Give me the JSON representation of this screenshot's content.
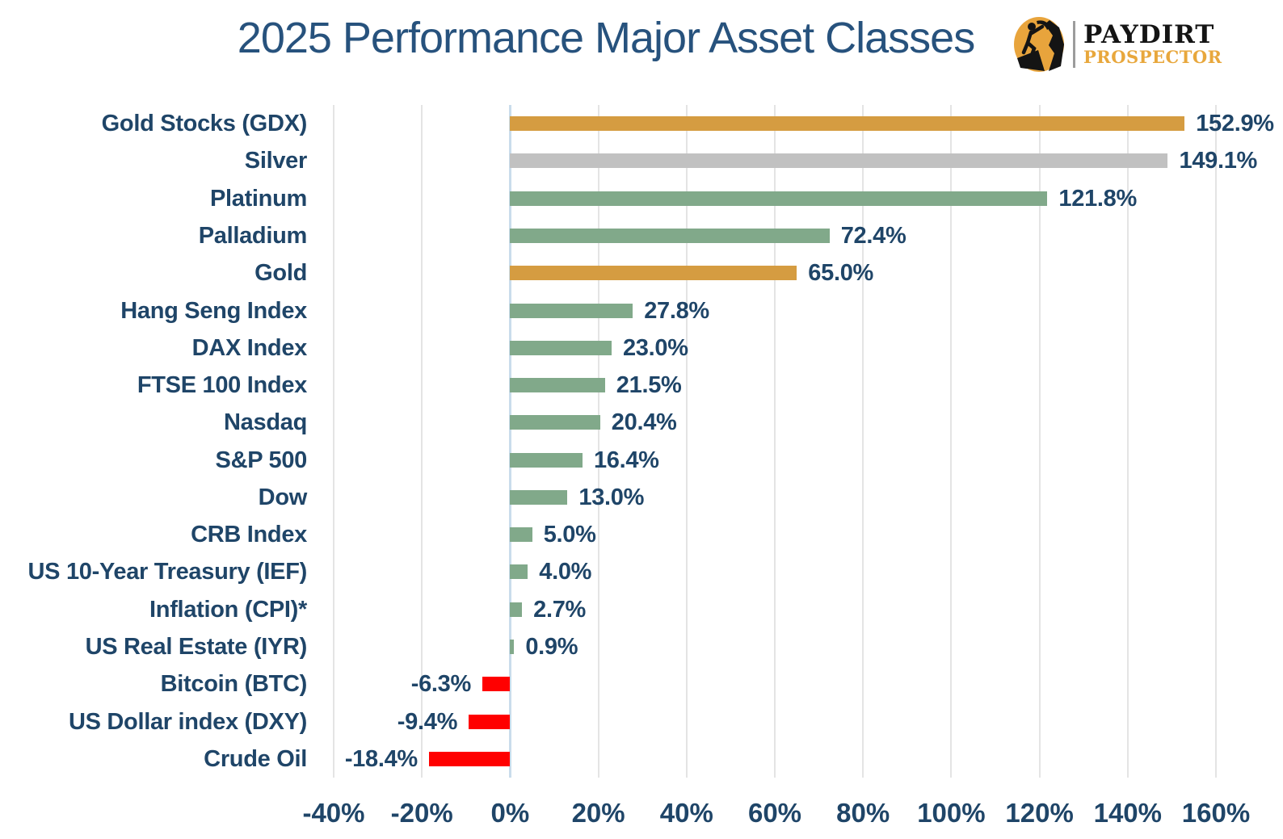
{
  "title": "2025 Performance Major Asset Classes",
  "logo": {
    "badge_icon": "prospector-pickaxe-badge",
    "name": "PAYDIRT",
    "subtitle": "PROSPECTOR",
    "badge_gold": "#E8A43C",
    "badge_black": "#141414"
  },
  "colors": {
    "gold": "#D59C41",
    "silver": "#C1C1C1",
    "green": "#81A98A",
    "red": "#FF0000",
    "navy_text": "#1F4568",
    "title_text": "#27527D",
    "gridline": "#E4E4E4",
    "zero_axis": "#C9DCEB"
  },
  "chart_data": {
    "type": "bar",
    "orientation": "horizontal",
    "title": "2025 Performance Major Asset Classes",
    "xlabel": "",
    "ylabel": "",
    "xlim": [
      -40,
      160
    ],
    "grid": "vertical",
    "legend": "none",
    "categories": [
      "Gold Stocks (GDX)",
      "Silver",
      "Platinum",
      "Palladium",
      "Gold",
      "Hang Seng Index",
      "DAX Index",
      "FTSE 100 Index",
      "Nasdaq",
      "S&P 500",
      "Dow",
      "CRB Index",
      "US 10-Year Treasury (IEF)",
      "Inflation (CPI)*",
      "US Real Estate (IYR)",
      "Bitcoin (BTC)",
      "US Dollar index (DXY)",
      "Crude Oil"
    ],
    "values": [
      152.9,
      149.1,
      121.8,
      72.4,
      65.0,
      27.8,
      23.0,
      21.5,
      20.4,
      16.4,
      13.0,
      5.0,
      4.0,
      2.7,
      0.9,
      -6.3,
      -9.4,
      -18.4
    ],
    "items": [
      {
        "label": "Gold Stocks (GDX)",
        "value": 152.9,
        "display": "152.9%",
        "color_key": "gold"
      },
      {
        "label": "Silver",
        "value": 149.1,
        "display": "149.1%",
        "color_key": "silver"
      },
      {
        "label": "Platinum",
        "value": 121.8,
        "display": "121.8%",
        "color_key": "green"
      },
      {
        "label": "Palladium",
        "value": 72.4,
        "display": "72.4%",
        "color_key": "green"
      },
      {
        "label": "Gold",
        "value": 65.0,
        "display": "65.0%",
        "color_key": "gold"
      },
      {
        "label": "Hang Seng Index",
        "value": 27.8,
        "display": "27.8%",
        "color_key": "green"
      },
      {
        "label": "DAX Index",
        "value": 23.0,
        "display": "23.0%",
        "color_key": "green"
      },
      {
        "label": "FTSE 100 Index",
        "value": 21.5,
        "display": "21.5%",
        "color_key": "green"
      },
      {
        "label": "Nasdaq",
        "value": 20.4,
        "display": "20.4%",
        "color_key": "green"
      },
      {
        "label": "S&P 500",
        "value": 16.4,
        "display": "16.4%",
        "color_key": "green"
      },
      {
        "label": "Dow",
        "value": 13.0,
        "display": "13.0%",
        "color_key": "green"
      },
      {
        "label": "CRB Index",
        "value": 5.0,
        "display": "5.0%",
        "color_key": "green"
      },
      {
        "label": "US 10-Year Treasury (IEF)",
        "value": 4.0,
        "display": "4.0%",
        "color_key": "green"
      },
      {
        "label": "Inflation (CPI)*",
        "value": 2.7,
        "display": "2.7%",
        "color_key": "green"
      },
      {
        "label": "US Real Estate (IYR)",
        "value": 0.9,
        "display": "0.9%",
        "color_key": "green"
      },
      {
        "label": "Bitcoin (BTC)",
        "value": -6.3,
        "display": "-6.3%",
        "color_key": "red"
      },
      {
        "label": "US Dollar index (DXY)",
        "value": -9.4,
        "display": "-9.4%",
        "color_key": "red"
      },
      {
        "label": "Crude Oil",
        "value": -18.4,
        "display": "-18.4%",
        "color_key": "red"
      }
    ],
    "x_axis": {
      "min": -40,
      "max": 160,
      "step": 20,
      "ticks": [
        "-40%",
        "-20%",
        "0%",
        "20%",
        "40%",
        "60%",
        "80%",
        "100%",
        "120%",
        "140%",
        "160%"
      ]
    }
  }
}
